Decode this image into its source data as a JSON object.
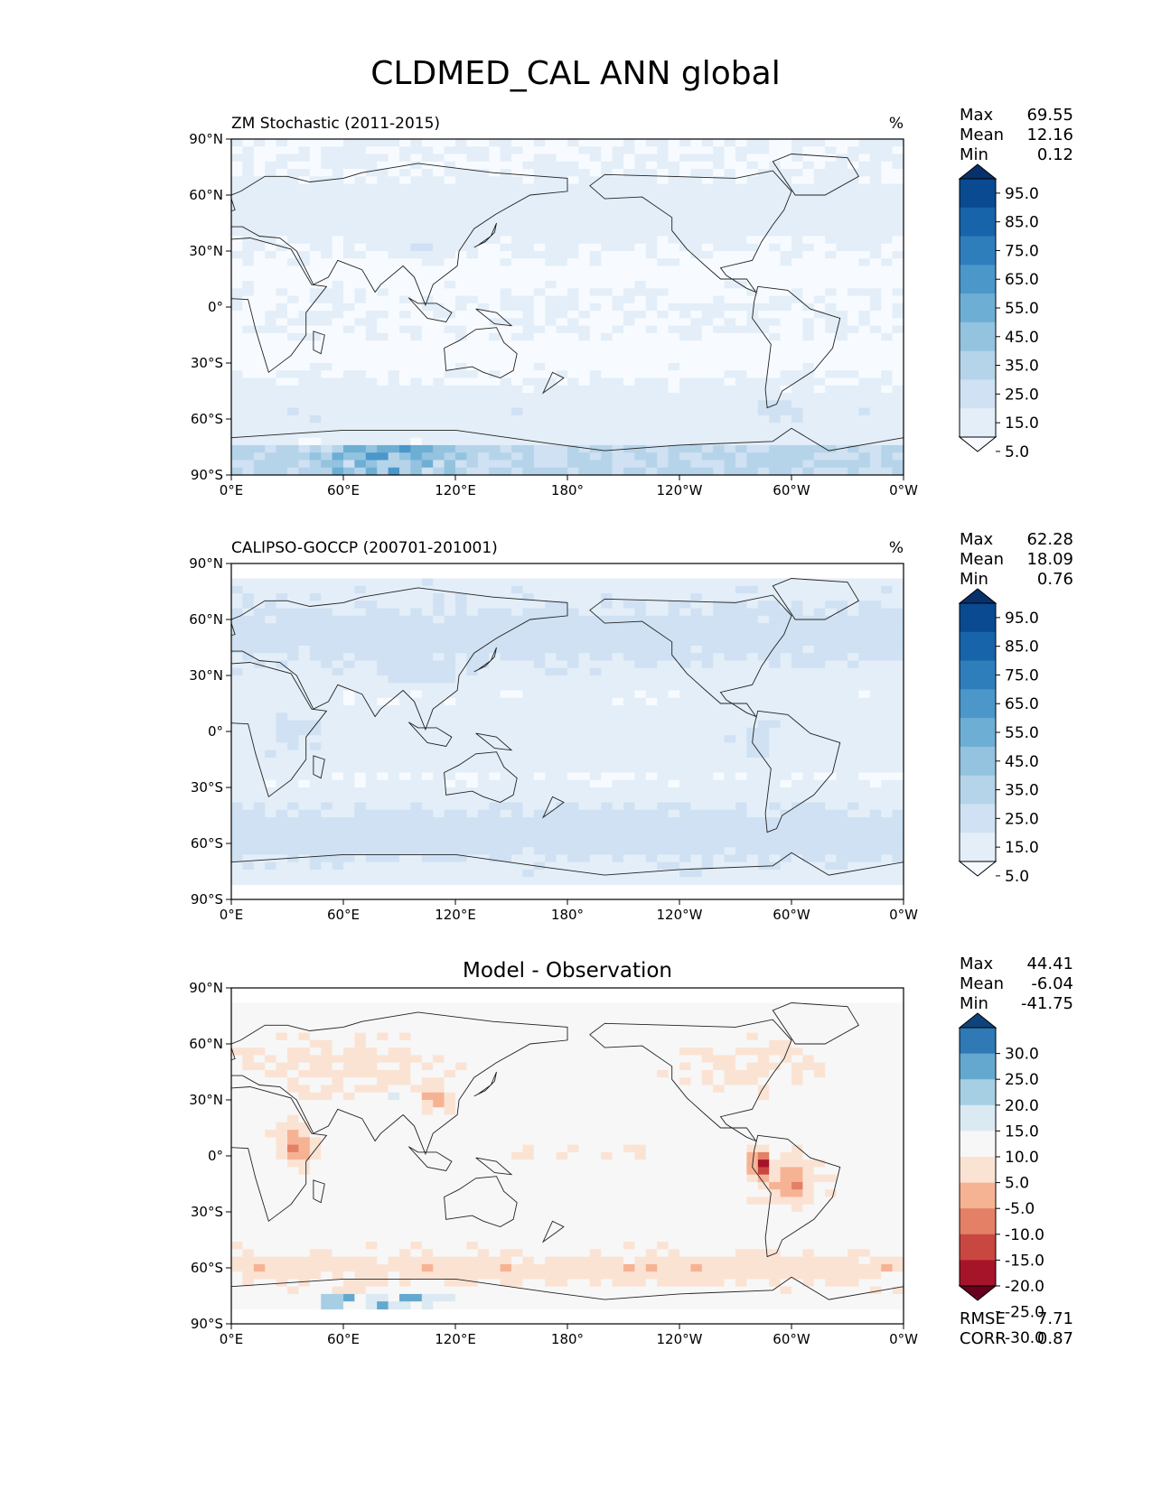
{
  "title": "CLDMED_CAL ANN global",
  "lat_ticks": [
    "90°N",
    "60°N",
    "30°N",
    "0°",
    "30°S",
    "60°S",
    "90°S"
  ],
  "lon_ticks": [
    "0°E",
    "60°E",
    "120°E",
    "180°",
    "120°W",
    "60°W",
    "0°W"
  ],
  "stat_labels": {
    "max": "Max",
    "mean": "Mean",
    "min": "Min",
    "rmse": "RMSE",
    "corr": "CORR"
  },
  "colors": {
    "blues": [
      "#f7fbff",
      "#e3eef8",
      "#cfe1f2",
      "#b5d4e9",
      "#93c3df",
      "#6daed5",
      "#4b97c9",
      "#2f7ebc",
      "#1864aa",
      "#0a4a90",
      "#08306b"
    ],
    "rdbu": [
      "#67001f",
      "#a51429",
      "#c94741",
      "#e48066",
      "#f6b394",
      "#fbe3d4",
      "#f7f7f7",
      "#dbe9f2",
      "#a6cfe4",
      "#65a8cf",
      "#2f79b5",
      "#0f437b"
    ]
  },
  "chart_data": [
    {
      "type": "heatmap",
      "id": "model",
      "title": "ZM Stochastic (2011-2015)",
      "units": "%",
      "stats": {
        "max": "69.55",
        "mean": "12.16",
        "min": "0.12"
      },
      "colorbar_ticks": [
        "95.0",
        "85.0",
        "75.0",
        "65.0",
        "55.0",
        "45.0",
        "35.0",
        "25.0",
        "15.0",
        "5.0"
      ],
      "xlim": [
        0,
        360
      ],
      "ylim": [
        -90,
        90
      ]
    },
    {
      "type": "heatmap",
      "id": "obs",
      "title": "CALIPSO-GOCCP (200701-201001)",
      "units": "%",
      "stats": {
        "max": "62.28",
        "mean": "18.09",
        "min": "0.76"
      },
      "colorbar_ticks": [
        "95.0",
        "85.0",
        "75.0",
        "65.0",
        "55.0",
        "45.0",
        "35.0",
        "25.0",
        "15.0",
        "5.0"
      ],
      "xlim": [
        0,
        360
      ],
      "ylim": [
        -90,
        90
      ]
    },
    {
      "type": "heatmap",
      "id": "diff",
      "title": "Model - Observation",
      "units": "",
      "stats": {
        "max": "44.41",
        "mean": "-6.04",
        "min": "-41.75"
      },
      "colorbar_ticks": [
        "30.0",
        "25.0",
        "20.0",
        "15.0",
        "10.0",
        "5.0",
        "-5.0",
        "-10.0",
        "-15.0",
        "-20.0",
        "-25.0",
        "-30.0"
      ],
      "rmse": "7.71",
      "corr": "0.87",
      "xlim": [
        0,
        360
      ],
      "ylim": [
        -90,
        90
      ]
    }
  ]
}
